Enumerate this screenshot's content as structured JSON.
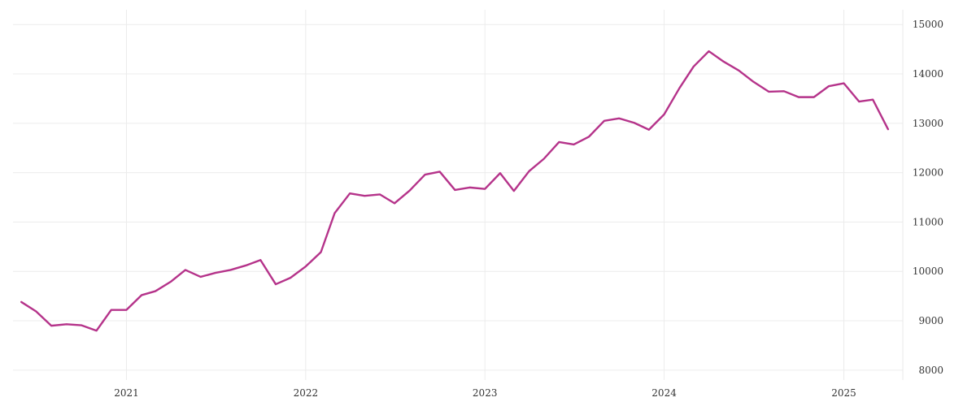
{
  "chart_data": {
    "type": "line",
    "title": "",
    "xlabel": "",
    "ylabel": "",
    "ylim": [
      7800,
      15300
    ],
    "yticks": [
      8000,
      9000,
      10000,
      11000,
      12000,
      13000,
      14000,
      15000
    ],
    "xticks": [
      "2021",
      "2022",
      "2023",
      "2024",
      "2025"
    ],
    "xtick_dates": [
      "2021-01-01",
      "2022-01-01",
      "2023-01-01",
      "2024-01-01",
      "2025-01-01"
    ],
    "xlim": [
      "2020-05-15",
      "2025-05-01"
    ],
    "grid": true,
    "y_axis_side": "right",
    "color": "#b5338a",
    "series": [
      {
        "x": [
          "2020-06-01",
          "2020-07-01",
          "2020-08-01",
          "2020-09-01",
          "2020-10-01",
          "2020-11-01",
          "2020-12-01",
          "2021-01-01",
          "2021-02-01",
          "2021-03-01",
          "2021-04-01",
          "2021-05-01",
          "2021-06-01",
          "2021-07-01",
          "2021-08-01",
          "2021-09-01",
          "2021-10-01",
          "2021-11-01",
          "2021-12-01",
          "2022-01-01",
          "2022-02-01",
          "2022-03-01",
          "2022-04-01",
          "2022-05-01",
          "2022-06-01",
          "2022-07-01",
          "2022-08-01",
          "2022-09-01",
          "2022-10-01",
          "2022-11-01",
          "2022-12-01",
          "2023-01-01",
          "2023-02-01",
          "2023-03-01",
          "2023-04-01",
          "2023-05-01",
          "2023-06-01",
          "2023-07-01",
          "2023-08-01",
          "2023-09-01",
          "2023-10-01",
          "2023-11-01",
          "2023-12-01",
          "2024-01-01",
          "2024-02-01",
          "2024-03-01",
          "2024-04-01",
          "2024-05-01",
          "2024-06-01",
          "2024-07-01",
          "2024-08-01",
          "2024-09-01",
          "2024-10-01",
          "2024-11-01",
          "2024-12-01",
          "2025-01-01",
          "2025-02-01",
          "2025-03-01",
          "2025-04-01"
        ],
        "values": [
          9380,
          9190,
          8900,
          8930,
          8910,
          8800,
          9220,
          9220,
          9520,
          9600,
          9790,
          10030,
          9890,
          9970,
          10030,
          10120,
          10230,
          9740,
          9870,
          10100,
          10390,
          11180,
          11580,
          11530,
          11560,
          11380,
          11640,
          11960,
          12020,
          11650,
          11700,
          11670,
          11990,
          11630,
          12030,
          12280,
          12620,
          12570,
          12730,
          13050,
          13100,
          13010,
          12870,
          13180,
          13710,
          14150,
          14460,
          14250,
          14070,
          13840,
          13640,
          13650,
          13530,
          13530,
          13750,
          13810,
          13440,
          13480,
          12880
        ]
      }
    ]
  }
}
